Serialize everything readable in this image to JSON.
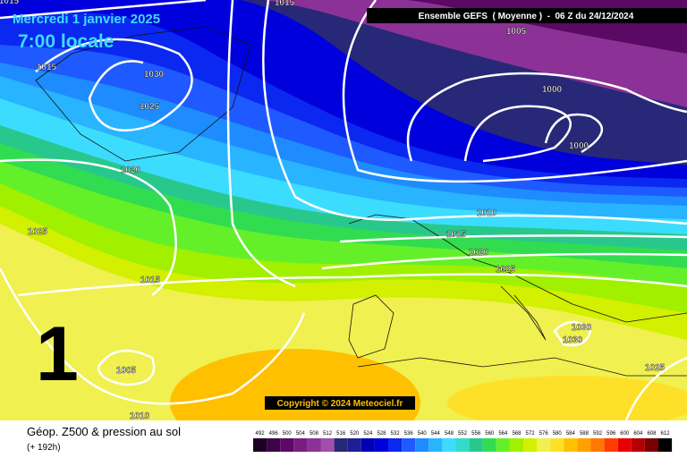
{
  "header": {
    "date": "Mercredi 1 janvier 2025",
    "time": "7:00 locale",
    "run": "Ensemble GEFS  ( Moyenne )  -  06 Z du 24/12/2024",
    "member": "1"
  },
  "isobar_labels": [
    "1015",
    "1015",
    "1005",
    "1030",
    "1025",
    "1015",
    "1020",
    "1025",
    "1000",
    "1000",
    "1010",
    "1015",
    "1020",
    "1025",
    "1015",
    "1005",
    "1010",
    "1030",
    "1030",
    "1025"
  ],
  "copyright": "Copyright © 2024 Meteociel.fr",
  "footer": {
    "title": "Géop. Z500 & pression au sol",
    "lead": "(+ 192h)"
  },
  "legend": {
    "values": [
      492,
      496,
      500,
      504,
      508,
      512,
      516,
      520,
      524,
      528,
      532,
      536,
      540,
      544,
      548,
      552,
      556,
      560,
      564,
      568,
      572,
      576,
      580,
      584,
      588,
      592,
      596,
      600,
      604,
      608,
      612
    ],
    "colors": [
      "#1e0024",
      "#3c0646",
      "#5a0a64",
      "#781e82",
      "#8c3296",
      "#a050aa",
      "#282878",
      "#1e1e96",
      "#0000b4",
      "#0000dc",
      "#0a28f0",
      "#1e5aff",
      "#1e8cff",
      "#28b4ff",
      "#3cdcff",
      "#32dcc8",
      "#28c88c",
      "#32dc50",
      "#64f028",
      "#a0f000",
      "#d2f000",
      "#f0f050",
      "#ffe028",
      "#ffc000",
      "#ffa000",
      "#ff7800",
      "#ff3c00",
      "#e60000",
      "#b40000",
      "#780000",
      "#000000"
    ]
  }
}
